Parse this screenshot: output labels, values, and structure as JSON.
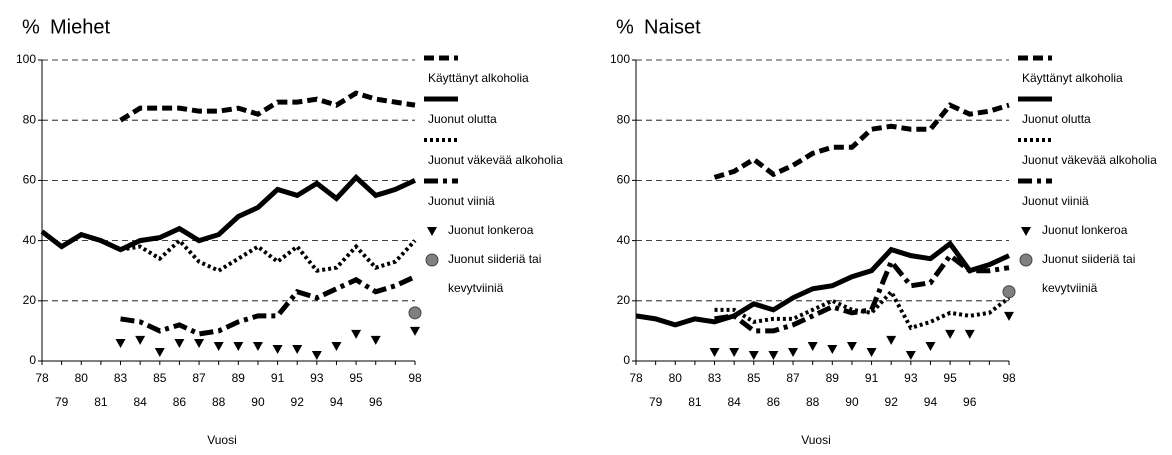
{
  "chart_data": [
    {
      "type": "line",
      "title": "Miehet",
      "ylabel": "%",
      "xlabel": "Vuosi",
      "categories": [
        "78",
        "79",
        "80",
        "81",
        "83",
        "84",
        "85",
        "86",
        "87",
        "88",
        "89",
        "90",
        "91",
        "92",
        "93",
        "94",
        "95",
        "96",
        null,
        "98"
      ],
      "ylim": [
        0,
        100
      ],
      "yticks": [
        0,
        20,
        40,
        60,
        80,
        100
      ],
      "grid": true,
      "series": [
        {
          "name": "Käyttänyt alkoholia",
          "color": "#000000",
          "style": "dashed",
          "values": [
            null,
            null,
            null,
            null,
            80,
            84,
            84,
            84,
            83,
            83,
            84,
            82,
            86,
            86,
            87,
            85,
            89,
            87,
            86,
            85
          ]
        },
        {
          "name": "Juonut olutta",
          "color": "#000000",
          "style": "solid",
          "values": [
            43,
            38,
            42,
            40,
            37,
            40,
            41,
            44,
            40,
            42,
            48,
            51,
            57,
            55,
            59,
            54,
            61,
            55,
            57,
            60
          ]
        },
        {
          "name": "Juonut väkevää alkoholia",
          "color": "#000000",
          "style": "dotted",
          "values": [
            null,
            null,
            null,
            null,
            37,
            38,
            34,
            40,
            33,
            30,
            34,
            38,
            33,
            38,
            30,
            31,
            38,
            31,
            33,
            40
          ]
        },
        {
          "name": "Juonut viiniä",
          "color": "#000000",
          "style": "dashdot",
          "values": [
            null,
            null,
            null,
            null,
            14,
            13,
            10,
            12,
            9,
            10,
            13,
            15,
            15,
            23,
            21,
            24,
            27,
            23,
            25,
            28
          ]
        },
        {
          "name": "Juonut lonkeroa",
          "color": "#000000",
          "style": "triangle",
          "values": [
            null,
            null,
            null,
            null,
            6,
            7,
            3,
            6,
            6,
            5,
            5,
            5,
            4,
            4,
            2,
            5,
            9,
            7,
            null,
            10
          ]
        },
        {
          "name": "Juonut siideriä tai kevytviiniä",
          "color": "#808080",
          "style": "circle",
          "values": [
            null,
            null,
            null,
            null,
            null,
            null,
            null,
            null,
            null,
            null,
            null,
            null,
            null,
            null,
            null,
            null,
            null,
            null,
            null,
            16
          ]
        }
      ]
    },
    {
      "type": "line",
      "title": "Naiset",
      "ylabel": "%",
      "xlabel": "Vuosi",
      "categories": [
        "78",
        "79",
        "80",
        "81",
        "83",
        "84",
        "85",
        "86",
        "87",
        "88",
        "89",
        "90",
        "91",
        "92",
        "93",
        "94",
        "95",
        "96",
        null,
        "98"
      ],
      "ylim": [
        0,
        100
      ],
      "yticks": [
        0,
        20,
        40,
        60,
        80,
        100
      ],
      "grid": true,
      "series": [
        {
          "name": "Käyttänyt alkoholia",
          "color": "#000000",
          "style": "dashed",
          "values": [
            null,
            null,
            null,
            null,
            61,
            63,
            67,
            62,
            65,
            69,
            71,
            71,
            77,
            78,
            77,
            77,
            85,
            82,
            83,
            85
          ]
        },
        {
          "name": "Juonut olutta",
          "color": "#000000",
          "style": "solid",
          "values": [
            15,
            14,
            12,
            14,
            13,
            15,
            19,
            17,
            21,
            24,
            25,
            28,
            30,
            37,
            35,
            34,
            39,
            30,
            32,
            35
          ]
        },
        {
          "name": "Juonut väkevää alkoholia",
          "color": "#000000",
          "style": "dotted",
          "values": [
            null,
            null,
            null,
            null,
            17,
            17,
            13,
            14,
            14,
            17,
            20,
            17,
            16,
            23,
            11,
            13,
            16,
            15,
            16,
            21
          ]
        },
        {
          "name": "Juonut viiniä",
          "color": "#000000",
          "style": "dashdot",
          "values": [
            null,
            null,
            null,
            null,
            14,
            15,
            10,
            10,
            12,
            15,
            18,
            16,
            17,
            33,
            25,
            26,
            35,
            30,
            30,
            31
          ]
        },
        {
          "name": "Juonut lonkeroa",
          "color": "#000000",
          "style": "triangle",
          "values": [
            null,
            null,
            null,
            null,
            3,
            3,
            2,
            2,
            3,
            5,
            4,
            5,
            3,
            7,
            2,
            5,
            9,
            9,
            null,
            15
          ]
        },
        {
          "name": "Juonut siideriä tai kevytviiniä",
          "color": "#808080",
          "style": "circle",
          "values": [
            null,
            null,
            null,
            null,
            null,
            null,
            null,
            null,
            null,
            null,
            null,
            null,
            null,
            null,
            null,
            null,
            null,
            null,
            null,
            23
          ]
        }
      ]
    }
  ]
}
